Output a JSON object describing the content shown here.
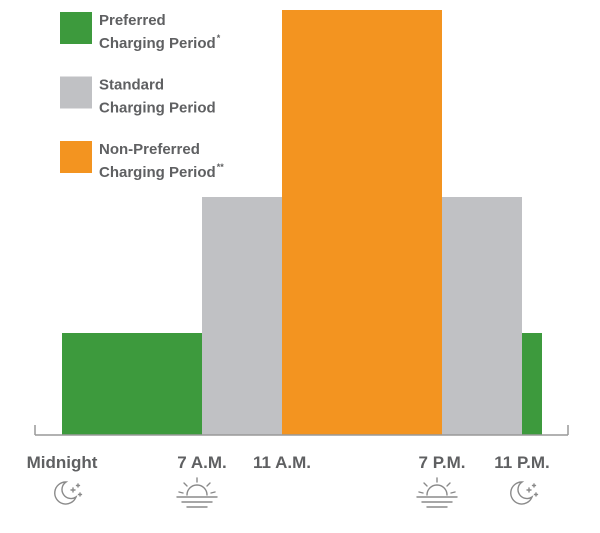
{
  "chart_data": {
    "type": "histogram",
    "bins": [
      0,
      7,
      11,
      19,
      23,
      24
    ],
    "values": [
      24,
      56,
      100,
      56,
      24
    ],
    "colors": [
      "#3d9a3d",
      "#c0c1c4",
      "#f39420",
      "#c0c1c4",
      "#3d9a3d"
    ],
    "xlim": [
      -1.35,
      25.3
    ],
    "ylim": [
      0,
      100
    ],
    "xticks": [
      {
        "value": 0,
        "label": "Midnight"
      },
      {
        "value": 7,
        "label": "7 A.M."
      },
      {
        "value": 11,
        "label": "11 A.M."
      },
      {
        "value": 19,
        "label": "7 P.M."
      },
      {
        "value": 23,
        "label": "11 P.M."
      }
    ],
    "legend_position": "upper left",
    "legend": [
      {
        "lines": [
          "Preferred",
          "Charging Period"
        ],
        "mark": "*",
        "color": "#3d9a3d"
      },
      {
        "lines": [
          "Standard",
          "Charging Period"
        ],
        "color": "#c0c1c4"
      },
      {
        "lines": [
          "Non-Preferred",
          "Charging Period"
        ],
        "mark": "**",
        "color": "#f39420"
      }
    ]
  }
}
